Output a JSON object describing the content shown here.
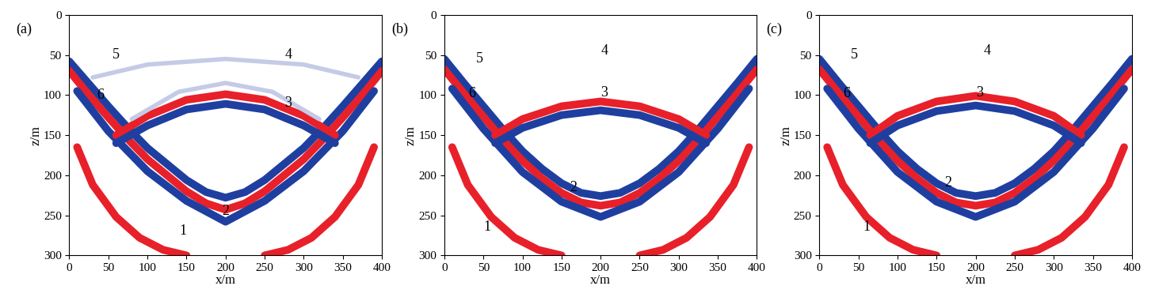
{
  "chart_data": [
    {
      "type": "image",
      "title": "(a)",
      "xlabel": "x/m",
      "ylabel": "z/m",
      "xlim": [
        0,
        400
      ],
      "ylim": [
        300,
        0
      ],
      "xticks": [
        0,
        50,
        100,
        150,
        200,
        250,
        300,
        350,
        400
      ],
      "yticks": [
        0,
        50,
        100,
        150,
        200,
        250,
        300
      ],
      "series": [
        {
          "color": "#1f3fa0",
          "x": [
            0,
            25,
            50,
            75,
            100,
            125,
            150,
            175,
            200,
            225,
            250,
            275,
            300,
            325,
            350,
            375,
            400
          ],
          "values": [
            58,
            86,
            114,
            141,
            166,
            186,
            206,
            221,
            228,
            221,
            206,
            186,
            166,
            141,
            114,
            86,
            58
          ]
        },
        {
          "color": "#e8202a",
          "x": [
            0,
            25,
            50,
            75,
            100,
            125,
            150,
            175,
            200,
            225,
            250,
            275,
            300,
            325,
            350,
            375,
            400
          ],
          "values": [
            70,
            100,
            128,
            155,
            180,
            200,
            220,
            235,
            243,
            235,
            220,
            200,
            180,
            155,
            128,
            100,
            70
          ]
        },
        {
          "color": "#1f3fa0",
          "x": [
            10,
            50,
            100,
            150,
            200,
            250,
            300,
            350,
            390
          ],
          "values": [
            95,
            145,
            195,
            232,
            258,
            232,
            195,
            145,
            95
          ]
        },
        {
          "color": "#e8202a",
          "x": [
            60,
            100,
            150,
            200,
            250,
            300,
            340
          ],
          "values": [
            150,
            126,
            106,
            99,
            106,
            126,
            150
          ]
        },
        {
          "color": "#1f3fa0",
          "x": [
            60,
            100,
            150,
            200,
            250,
            300,
            340
          ],
          "values": [
            160,
            138,
            118,
            111,
            118,
            138,
            160
          ]
        },
        {
          "color": "#e8202a",
          "x": [
            10,
            30,
            60,
            90,
            120,
            150
          ],
          "values": [
            165,
            212,
            252,
            278,
            293,
            300
          ]
        },
        {
          "color": "#e8202a",
          "x": [
            250,
            280,
            310,
            340,
            370,
            390
          ],
          "values": [
            300,
            293,
            278,
            252,
            212,
            165
          ]
        },
        {
          "color": "#c5cbe6",
          "x": [
            30,
            100,
            200,
            300,
            370
          ],
          "values": [
            78,
            62,
            55,
            62,
            78
          ]
        },
        {
          "color": "#c5cbe6",
          "x": [
            80,
            140,
            200,
            260,
            320
          ],
          "values": [
            130,
            96,
            85,
            96,
            130
          ]
        }
      ],
      "annotations": [
        {
          "text": "1",
          "x": 145,
          "z": 270
        },
        {
          "text": "2",
          "x": 200,
          "z": 245
        },
        {
          "text": "3",
          "x": 280,
          "z": 110
        },
        {
          "text": "4",
          "x": 280,
          "z": 50
        },
        {
          "text": "5",
          "x": 60,
          "z": 50
        },
        {
          "text": "6",
          "x": 40,
          "z": 100
        }
      ]
    },
    {
      "type": "image",
      "title": "(b)",
      "xlabel": "x/m",
      "ylabel": "z/m",
      "xlim": [
        0,
        400
      ],
      "ylim": [
        300,
        0
      ],
      "xticks": [
        0,
        50,
        100,
        150,
        200,
        250,
        300,
        350,
        400
      ],
      "yticks": [
        0,
        50,
        100,
        150,
        200,
        250,
        300
      ],
      "series": [
        {
          "color": "#1f3fa0",
          "x": [
            0,
            25,
            50,
            75,
            100,
            125,
            150,
            175,
            200,
            225,
            250,
            275,
            300,
            325,
            350,
            375,
            400
          ],
          "values": [
            55,
            85,
            114,
            143,
            170,
            192,
            210,
            222,
            226,
            222,
            210,
            192,
            170,
            143,
            114,
            85,
            55
          ]
        },
        {
          "color": "#e8202a",
          "x": [
            0,
            25,
            50,
            75,
            100,
            125,
            150,
            175,
            200,
            225,
            250,
            275,
            300,
            325,
            350,
            375,
            400
          ],
          "values": [
            68,
            98,
            127,
            156,
            182,
            204,
            222,
            234,
            238,
            234,
            222,
            204,
            182,
            156,
            127,
            98,
            68
          ]
        },
        {
          "color": "#1f3fa0",
          "x": [
            10,
            50,
            100,
            150,
            200,
            250,
            300,
            350,
            390
          ],
          "values": [
            92,
            142,
            196,
            233,
            252,
            233,
            196,
            142,
            92
          ]
        },
        {
          "color": "#e8202a",
          "x": [
            65,
            100,
            150,
            200,
            250,
            300,
            335
          ],
          "values": [
            150,
            130,
            114,
            108,
            114,
            130,
            150
          ]
        },
        {
          "color": "#1f3fa0",
          "x": [
            65,
            100,
            150,
            200,
            250,
            300,
            335
          ],
          "values": [
            160,
            141,
            125,
            119,
            125,
            141,
            160
          ]
        },
        {
          "color": "#e8202a",
          "x": [
            10,
            30,
            60,
            90,
            120,
            150
          ],
          "values": [
            165,
            212,
            252,
            278,
            293,
            300
          ]
        },
        {
          "color": "#e8202a",
          "x": [
            250,
            280,
            310,
            340,
            370,
            390
          ],
          "values": [
            300,
            293,
            278,
            252,
            212,
            165
          ]
        }
      ],
      "annotations": [
        {
          "text": "1",
          "x": 55,
          "z": 265
        },
        {
          "text": "2",
          "x": 165,
          "z": 215
        },
        {
          "text": "3",
          "x": 205,
          "z": 97
        },
        {
          "text": "4",
          "x": 205,
          "z": 45
        },
        {
          "text": "5",
          "x": 45,
          "z": 55
        },
        {
          "text": "6",
          "x": 35,
          "z": 98
        }
      ]
    },
    {
      "type": "image",
      "title": "(c)",
      "xlabel": "x/m",
      "ylabel": "z/m",
      "xlim": [
        0,
        400
      ],
      "ylim": [
        300,
        0
      ],
      "xticks": [
        0,
        50,
        100,
        150,
        200,
        250,
        300,
        350,
        400
      ],
      "yticks": [
        0,
        50,
        100,
        150,
        200,
        250,
        300
      ],
      "series": [
        {
          "color": "#1f3fa0",
          "x": [
            0,
            25,
            50,
            75,
            100,
            125,
            150,
            175,
            200,
            225,
            250,
            275,
            300,
            325,
            350,
            375,
            400
          ],
          "values": [
            55,
            85,
            114,
            143,
            170,
            192,
            210,
            222,
            226,
            222,
            210,
            192,
            170,
            143,
            114,
            85,
            55
          ]
        },
        {
          "color": "#e8202a",
          "x": [
            0,
            25,
            50,
            75,
            100,
            125,
            150,
            175,
            200,
            225,
            250,
            275,
            300,
            325,
            350,
            375,
            400
          ],
          "values": [
            68,
            98,
            127,
            156,
            182,
            204,
            222,
            234,
            238,
            234,
            222,
            204,
            182,
            156,
            127,
            98,
            68
          ]
        },
        {
          "color": "#1f3fa0",
          "x": [
            10,
            50,
            100,
            150,
            200,
            250,
            300,
            350,
            390
          ],
          "values": [
            92,
            142,
            196,
            233,
            252,
            233,
            196,
            142,
            92
          ]
        },
        {
          "color": "#e8202a",
          "x": [
            65,
            100,
            150,
            200,
            250,
            300,
            335
          ],
          "values": [
            150,
            126,
            108,
            101,
            108,
            126,
            150
          ]
        },
        {
          "color": "#1f3fa0",
          "x": [
            65,
            100,
            150,
            200,
            250,
            300,
            335
          ],
          "values": [
            160,
            138,
            120,
            113,
            120,
            138,
            160
          ]
        },
        {
          "color": "#e8202a",
          "x": [
            10,
            30,
            60,
            90,
            120,
            150
          ],
          "values": [
            165,
            212,
            252,
            278,
            293,
            300
          ]
        },
        {
          "color": "#e8202a",
          "x": [
            250,
            280,
            310,
            340,
            370,
            390
          ],
          "values": [
            300,
            293,
            278,
            252,
            212,
            165
          ]
        }
      ],
      "annotations": [
        {
          "text": "1",
          "x": 60,
          "z": 265
        },
        {
          "text": "2",
          "x": 165,
          "z": 210
        },
        {
          "text": "3",
          "x": 205,
          "z": 97
        },
        {
          "text": "4",
          "x": 215,
          "z": 45
        },
        {
          "text": "5",
          "x": 45,
          "z": 50
        },
        {
          "text": "6",
          "x": 35,
          "z": 98
        }
      ]
    }
  ]
}
